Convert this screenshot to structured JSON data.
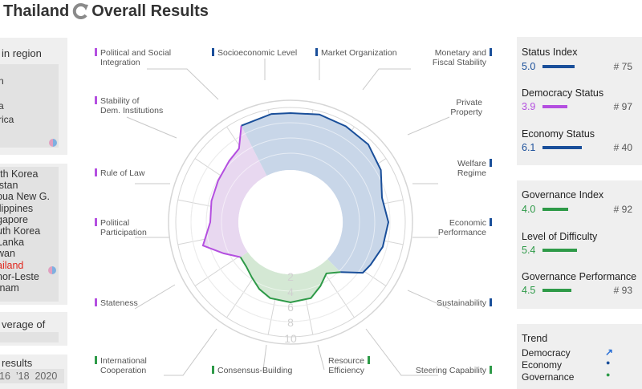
{
  "header": {
    "country": "Thailand",
    "subtitle": "Overall Results"
  },
  "left_panel": {
    "region_heading": "in region",
    "region_items": [
      "n",
      "a",
      "rica"
    ],
    "countries": [
      "rth Korea",
      "istan",
      "pua New G.",
      "ilippines",
      "gapore",
      "uth Korea",
      "Lanka",
      "wan",
      "ailand",
      "nor-Leste",
      "tnam"
    ],
    "highlight_index": 8,
    "average_heading": "verage of",
    "results_heading": "results",
    "years": "16  ’18  2020"
  },
  "radar": {
    "labels": {
      "pol_social": [
        "Political and Social",
        "Integration"
      ],
      "socio": "Socioeconomic Level",
      "market": "Market Organization",
      "monetary": [
        "Monetary and",
        "Fiscal Stability"
      ],
      "stability": [
        "Stability of",
        "Dem. Institutions"
      ],
      "private": [
        "Private",
        "Property"
      ],
      "rule": "Rule of Law",
      "welfare": [
        "Welfare",
        "Regime"
      ],
      "political": [
        "Political",
        "Participation"
      ],
      "economic": [
        "Economic",
        "Performance"
      ],
      "stateness": "Stateness",
      "sustain": "Sustainability",
      "intl": [
        "International",
        "Cooperation"
      ],
      "consensus": "Consensus-Building",
      "resource": [
        "Resource",
        "Efficiency"
      ],
      "steering": "Steering Capability"
    },
    "rings": [
      "2",
      "4",
      "6",
      "8",
      "10"
    ]
  },
  "status": {
    "status_index": {
      "label": "Status Index",
      "value": "5.0",
      "rank": "# 75",
      "bar": 0.5
    },
    "democracy": {
      "label": "Democracy Status",
      "value": "3.9",
      "rank": "# 97",
      "bar": 0.39
    },
    "economy": {
      "label": "Economy Status",
      "value": "6.1",
      "rank": "# 40",
      "bar": 0.61
    }
  },
  "governance": {
    "gov_index": {
      "label": "Governance Index",
      "value": "4.0",
      "rank": "# 92",
      "bar": 0.4
    },
    "difficulty": {
      "label": "Level of Difficulty",
      "value": "5.4",
      "bar": 0.54
    },
    "performance": {
      "label": "Governance Performance",
      "value": "4.5",
      "rank": "# 93",
      "bar": 0.45
    }
  },
  "trend": {
    "title": "Trend",
    "items": [
      {
        "label": "Democracy",
        "symbol": "↗"
      },
      {
        "label": "Economy",
        "symbol": "●"
      },
      {
        "label": "Governance",
        "symbol": "●"
      }
    ]
  },
  "colors": {
    "democracy": "#b44fe0",
    "economy": "#1a4f9a",
    "governance": "#2e9a48",
    "highlight": "#e0261c"
  }
}
